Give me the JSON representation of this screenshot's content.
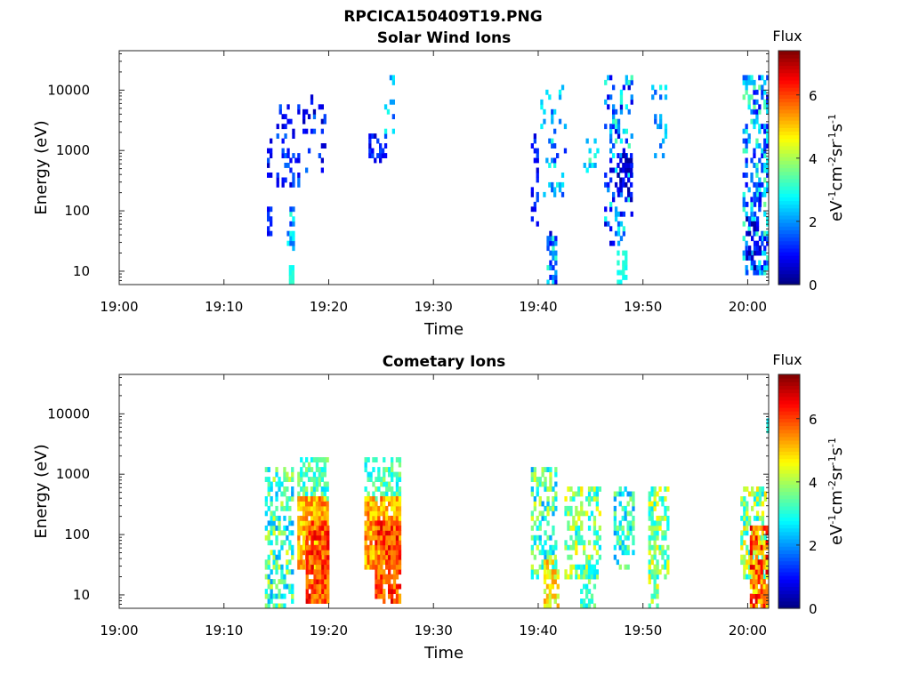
{
  "figure_title": "RPCICA150409T19.PNG",
  "chart_data": [
    {
      "type": "heatmap",
      "title": "Solar Wind Ions",
      "xlabel": "Time",
      "ylabel": "Energy (eV)",
      "xticks": [
        "19:00",
        "19:10",
        "19:20",
        "19:30",
        "19:40",
        "19:50",
        "20:00"
      ],
      "xlim_minutes": [
        0,
        62
      ],
      "ylim": [
        6,
        45000
      ],
      "yscale": "log",
      "yticks": [
        10,
        100,
        1000,
        10000
      ],
      "ytick_labels": [
        "10",
        "100",
        "1000",
        "10000"
      ],
      "colorbar": {
        "title": "Flux",
        "label_prefix": "eV",
        "label_units": "cm",
        "label_suffix": "sr",
        "label_tail": "s",
        "exp_neg1": "-1",
        "exp_neg2": "-2",
        "range": [
          0,
          7.4
        ],
        "ticks": [
          0,
          2,
          4,
          6
        ],
        "tick_labels": [
          "0",
          "2",
          "4",
          "6"
        ],
        "colormap": "jet"
      },
      "blobs": [
        {
          "t0": 14.1,
          "t1": 14.5,
          "e0": 400,
          "e1": 1500,
          "f0": 0.4,
          "f1": 1.6,
          "d": 0.55
        },
        {
          "t0": 14.1,
          "t1": 14.6,
          "e0": 45,
          "e1": 100,
          "f0": 0.8,
          "f1": 1.4,
          "d": 0.8
        },
        {
          "t0": 15.0,
          "t1": 17.2,
          "e0": 250,
          "e1": 5000,
          "f0": 0.5,
          "f1": 1.8,
          "d": 0.22
        },
        {
          "t0": 16.0,
          "t1": 16.7,
          "e0": 25,
          "e1": 100,
          "f0": 1.2,
          "f1": 3.2,
          "d": 0.45
        },
        {
          "t0": 16.2,
          "t1": 16.5,
          "e0": 6,
          "e1": 12,
          "f0": 2.8,
          "f1": 3.2,
          "d": 0.9
        },
        {
          "t0": 17.5,
          "t1": 19.6,
          "e0": 500,
          "e1": 8000,
          "f0": 0.3,
          "f1": 1.8,
          "d": 0.2
        },
        {
          "t0": 23.8,
          "t1": 25.5,
          "e0": 700,
          "e1": 1700,
          "f0": 0.4,
          "f1": 1.6,
          "d": 0.5
        },
        {
          "t0": 25.3,
          "t1": 26.3,
          "e0": 1400,
          "e1": 15000,
          "f0": 1.5,
          "f1": 3.0,
          "d": 0.12
        },
        {
          "t0": 39.3,
          "t1": 40.0,
          "e0": 60,
          "e1": 2200,
          "f0": 0.6,
          "f1": 1.6,
          "d": 0.3
        },
        {
          "t0": 40.2,
          "t1": 42.5,
          "e0": 200,
          "e1": 12000,
          "f0": 1.0,
          "f1": 3.0,
          "d": 0.22
        },
        {
          "t0": 40.8,
          "t1": 41.6,
          "e0": 6,
          "e1": 40,
          "f0": 0.5,
          "f1": 3.2,
          "d": 0.5
        },
        {
          "t0": 44.3,
          "t1": 45.7,
          "e0": 500,
          "e1": 2000,
          "f0": 2.0,
          "f1": 3.5,
          "d": 0.3
        },
        {
          "t0": 46.3,
          "t1": 49.0,
          "e0": 30,
          "e1": 15000,
          "f0": 0.5,
          "f1": 3.4,
          "d": 0.3
        },
        {
          "t0": 47.5,
          "t1": 48.8,
          "e0": 150,
          "e1": 800,
          "f0": 0.1,
          "f1": 1.2,
          "d": 0.6
        },
        {
          "t0": 47.5,
          "t1": 48.4,
          "e0": 6,
          "e1": 20,
          "f0": 2.8,
          "f1": 3.2,
          "d": 0.5
        },
        {
          "t0": 50.8,
          "t1": 52.2,
          "e0": 700,
          "e1": 12000,
          "f0": 1.5,
          "f1": 3.0,
          "d": 0.25
        },
        {
          "t0": 59.5,
          "t1": 62.0,
          "e0": 10,
          "e1": 15000,
          "f0": 0.8,
          "f1": 3.6,
          "d": 0.45
        },
        {
          "t0": 59.8,
          "t1": 61.2,
          "e0": 10,
          "e1": 200,
          "f0": 0.2,
          "f1": 1.5,
          "d": 0.45
        }
      ]
    },
    {
      "type": "heatmap",
      "title": "Cometary Ions",
      "xlabel": "Time",
      "ylabel": "Energy (eV)",
      "xticks": [
        "19:00",
        "19:10",
        "19:20",
        "19:30",
        "19:40",
        "19:50",
        "20:00"
      ],
      "xlim_minutes": [
        0,
        62
      ],
      "ylim": [
        6,
        45000
      ],
      "yscale": "log",
      "yticks": [
        10,
        100,
        1000,
        10000
      ],
      "ytick_labels": [
        "10",
        "100",
        "1000",
        "10000"
      ],
      "colorbar": {
        "title": "Flux",
        "label_prefix": "eV",
        "label_units": "cm",
        "label_suffix": "sr",
        "label_tail": "s",
        "exp_neg1": "-1",
        "exp_neg2": "-2",
        "range": [
          0,
          7.4
        ],
        "ticks": [
          0,
          2,
          4,
          6
        ],
        "tick_labels": [
          "0",
          "2",
          "4",
          "6"
        ],
        "colormap": "jet"
      },
      "blobs": [
        {
          "t0": 13.9,
          "t1": 16.6,
          "e0": 6,
          "e1": 1300,
          "f0": 2.0,
          "f1": 4.5,
          "d": 0.5
        },
        {
          "t0": 17.0,
          "t1": 20.0,
          "e0": 400,
          "e1": 1800,
          "f0": 2.5,
          "f1": 4.0,
          "d": 0.55
        },
        {
          "t0": 17.0,
          "t1": 20.0,
          "e0": 30,
          "e1": 400,
          "f0": 4.5,
          "f1": 6.0,
          "d": 0.92
        },
        {
          "t0": 17.8,
          "t1": 20.0,
          "e0": 8,
          "e1": 150,
          "f0": 5.2,
          "f1": 6.8,
          "d": 0.85
        },
        {
          "t0": 23.4,
          "t1": 26.8,
          "e0": 400,
          "e1": 1800,
          "f0": 2.5,
          "f1": 4.0,
          "d": 0.55
        },
        {
          "t0": 23.4,
          "t1": 26.8,
          "e0": 30,
          "e1": 400,
          "f0": 4.5,
          "f1": 6.0,
          "d": 0.92
        },
        {
          "t0": 24.4,
          "t1": 26.8,
          "e0": 8,
          "e1": 150,
          "f0": 5.2,
          "f1": 6.8,
          "d": 0.85
        },
        {
          "t0": 39.3,
          "t1": 41.8,
          "e0": 20,
          "e1": 1100,
          "f0": 2.0,
          "f1": 4.5,
          "d": 0.5
        },
        {
          "t0": 40.5,
          "t1": 41.8,
          "e0": 6,
          "e1": 40,
          "f0": 4.0,
          "f1": 5.5,
          "d": 0.5
        },
        {
          "t0": 42.5,
          "t1": 46.0,
          "e0": 20,
          "e1": 600,
          "f0": 2.5,
          "f1": 4.8,
          "d": 0.5
        },
        {
          "t0": 44.0,
          "t1": 45.5,
          "e0": 6,
          "e1": 30,
          "f0": 2.5,
          "f1": 4.0,
          "d": 0.45
        },
        {
          "t0": 47.2,
          "t1": 49.0,
          "e0": 30,
          "e1": 600,
          "f0": 2.0,
          "f1": 4.0,
          "d": 0.5
        },
        {
          "t0": 50.5,
          "t1": 52.3,
          "e0": 20,
          "e1": 600,
          "f0": 2.5,
          "f1": 4.8,
          "d": 0.6
        },
        {
          "t0": 50.5,
          "t1": 51.5,
          "e0": 6,
          "e1": 40,
          "f0": 3.0,
          "f1": 5.0,
          "d": 0.5
        },
        {
          "t0": 59.3,
          "t1": 61.8,
          "e0": 20,
          "e1": 600,
          "f0": 2.5,
          "f1": 5.0,
          "d": 0.6
        },
        {
          "t0": 60.2,
          "t1": 61.8,
          "e0": 6,
          "e1": 120,
          "f0": 4.5,
          "f1": 6.8,
          "d": 0.75
        },
        {
          "t0": 61.8,
          "t1": 62.0,
          "e0": 5500,
          "e1": 7500,
          "f0": 2.5,
          "f1": 3.0,
          "d": 1.0
        }
      ]
    }
  ]
}
